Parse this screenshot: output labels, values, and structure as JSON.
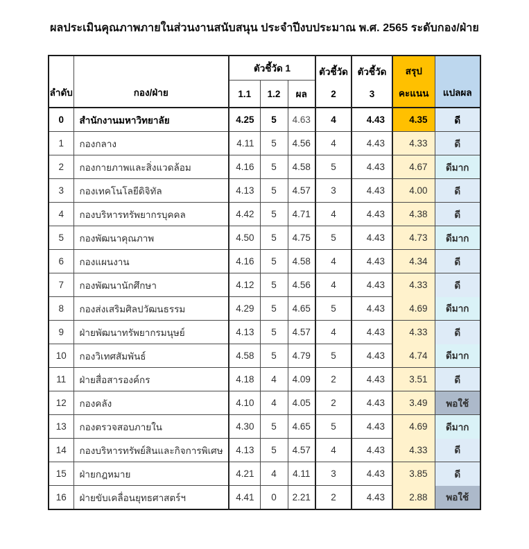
{
  "title": "ผลประเมินคุณภาพภายในส่วนงานสนับสนุน ประจำปีงบประมาณ พ.ศ. 2565 ระดับกอง/ฝ่าย",
  "colors": {
    "summary_header_orange": "#FFC000",
    "summary_cell_cream": "#FFF2CC",
    "interpret_header_blue": "#BDD7EE",
    "grade_fills": {
      "ดี": "#DEEBF7",
      "ดีมาก": "#DAF2F7",
      "พอใช้": "#ACB9CA"
    }
  },
  "table": {
    "headers": {
      "order": "ลำดับ",
      "division": "กอง/ฝ่าย",
      "indicator1_group": "ตัวชี้วัด 1",
      "indicator1_sub1": "1.1",
      "indicator1_sub2": "1.2",
      "indicator1_result": "ผล",
      "indicator2_line1": "ตัวชี้วัด",
      "indicator2_line2": "2",
      "indicator3_line1": "ตัวชี้วัด",
      "indicator3_line2": "3",
      "summary_line1": "สรุป",
      "summary_line2": "คะแนน",
      "interpretation": "แปลผล"
    },
    "rows": [
      {
        "no": "0",
        "name": "สำนักงานมหาวิทยาลัย",
        "i11": "4.25",
        "i12": "5",
        "result": "4.63",
        "i2": "4",
        "i3": "4.43",
        "total": "4.35",
        "grade": "ดี",
        "emphasis": true,
        "total_orange": true,
        "merge_top": false
      },
      {
        "no": "1",
        "name": "กองกลาง",
        "i11": "4.11",
        "i12": "5",
        "result": "4.56",
        "i2": "4",
        "i3": "4.43",
        "total": "4.33",
        "grade": "ดี",
        "emphasis": false,
        "total_orange": false,
        "merge_top": false
      },
      {
        "no": "2",
        "name": "กองกายภาพและสิ่งแวดล้อม",
        "i11": "4.16",
        "i12": "5",
        "result": "4.58",
        "i2": "5",
        "i3": "4.43",
        "total": "4.67",
        "grade": "ดีมาก",
        "emphasis": false,
        "total_orange": false,
        "merge_top": false
      },
      {
        "no": "3",
        "name": "กองเทคโนโลยีดิจิทัล",
        "i11": "4.13",
        "i12": "5",
        "result": "4.57",
        "i2": "3",
        "i3": "4.43",
        "total": "4.00",
        "grade": "ดี",
        "emphasis": false,
        "total_orange": false,
        "merge_top": false
      },
      {
        "no": "4",
        "name": "กองบริหารทรัพยากรบุคคล",
        "i11": "4.42",
        "i12": "5",
        "result": "4.71",
        "i2": "4",
        "i3": "4.43",
        "total": "4.38",
        "grade": "ดี",
        "emphasis": false,
        "total_orange": false,
        "merge_top": false
      },
      {
        "no": "5",
        "name": "กองพัฒนาคุณภาพ",
        "i11": "4.50",
        "i12": "5",
        "result": "4.75",
        "i2": "5",
        "i3": "4.43",
        "total": "4.73",
        "grade": "ดีมาก",
        "emphasis": false,
        "total_orange": false,
        "merge_top": false
      },
      {
        "no": "6",
        "name": "กองแผนงาน",
        "i11": "4.16",
        "i12": "5",
        "result": "4.58",
        "i2": "4",
        "i3": "4.43",
        "total": "4.34",
        "grade": "ดี",
        "emphasis": false,
        "total_orange": false,
        "merge_top": false
      },
      {
        "no": "7",
        "name": "กองพัฒนานักศึกษา",
        "i11": "4.12",
        "i12": "5",
        "result": "4.56",
        "i2": "4",
        "i3": "4.43",
        "total": "4.33",
        "grade": "ดี",
        "emphasis": false,
        "total_orange": false,
        "merge_top": false
      },
      {
        "no": "8",
        "name": "กองส่งเสริมศิลปวัฒนธรรม",
        "i11": "4.29",
        "i12": "5",
        "result": "4.65",
        "i2": "5",
        "i3": "4.43",
        "total": "4.69",
        "grade": "ดีมาก",
        "emphasis": false,
        "total_orange": false,
        "merge_top": true
      },
      {
        "no": "9",
        "name": "ฝ่ายพัฒนาทรัพยากรมนุษย์",
        "i11": "4.13",
        "i12": "5",
        "result": "4.57",
        "i2": "4",
        "i3": "4.43",
        "total": "4.33",
        "grade": "ดี",
        "emphasis": false,
        "total_orange": false,
        "merge_top": false
      },
      {
        "no": "10",
        "name": "กองวิเทศสัมพันธ์",
        "i11": "4.58",
        "i12": "5",
        "result": "4.79",
        "i2": "5",
        "i3": "4.43",
        "total": "4.74",
        "grade": "ดีมาก",
        "emphasis": false,
        "total_orange": false,
        "merge_top": true
      },
      {
        "no": "11",
        "name": "ฝ่ายสื่อสารองค์กร",
        "i11": "4.18",
        "i12": "4",
        "result": "4.09",
        "i2": "2",
        "i3": "4.43",
        "total": "3.51",
        "grade": "ดี",
        "emphasis": false,
        "total_orange": false,
        "merge_top": false
      },
      {
        "no": "12",
        "name": "กองคลัง",
        "i11": "4.10",
        "i12": "4",
        "result": "4.05",
        "i2": "2",
        "i3": "4.43",
        "total": "3.49",
        "grade": "พอใช้",
        "emphasis": false,
        "total_orange": false,
        "merge_top": false
      },
      {
        "no": "13",
        "name": "กองตรวจสอบภายใน",
        "i11": "4.30",
        "i12": "5",
        "result": "4.65",
        "i2": "5",
        "i3": "4.43",
        "total": "4.69",
        "grade": "ดีมาก",
        "emphasis": false,
        "total_orange": false,
        "merge_top": false
      },
      {
        "no": "14",
        "name": "กองบริหารทรัพย์สินและกิจการพิเศษ",
        "i11": "4.13",
        "i12": "5",
        "result": "4.57",
        "i2": "4",
        "i3": "4.43",
        "total": "4.33",
        "grade": "ดี",
        "emphasis": false,
        "total_orange": false,
        "merge_top": true
      },
      {
        "no": "15",
        "name": "ฝ่ายกฎหมาย",
        "i11": "4.21",
        "i12": "4",
        "result": "4.11",
        "i2": "3",
        "i3": "4.43",
        "total": "3.85",
        "grade": "ดี",
        "emphasis": false,
        "total_orange": false,
        "merge_top": false
      },
      {
        "no": "16",
        "name": "ฝ่ายขับเคลื่อนยุทธศาสตร์ฯ",
        "i11": "4.41",
        "i12": "0",
        "result": "2.21",
        "i2": "2",
        "i3": "4.43",
        "total": "2.88",
        "grade": "พอใช้",
        "emphasis": false,
        "total_orange": false,
        "merge_top": true
      }
    ]
  }
}
